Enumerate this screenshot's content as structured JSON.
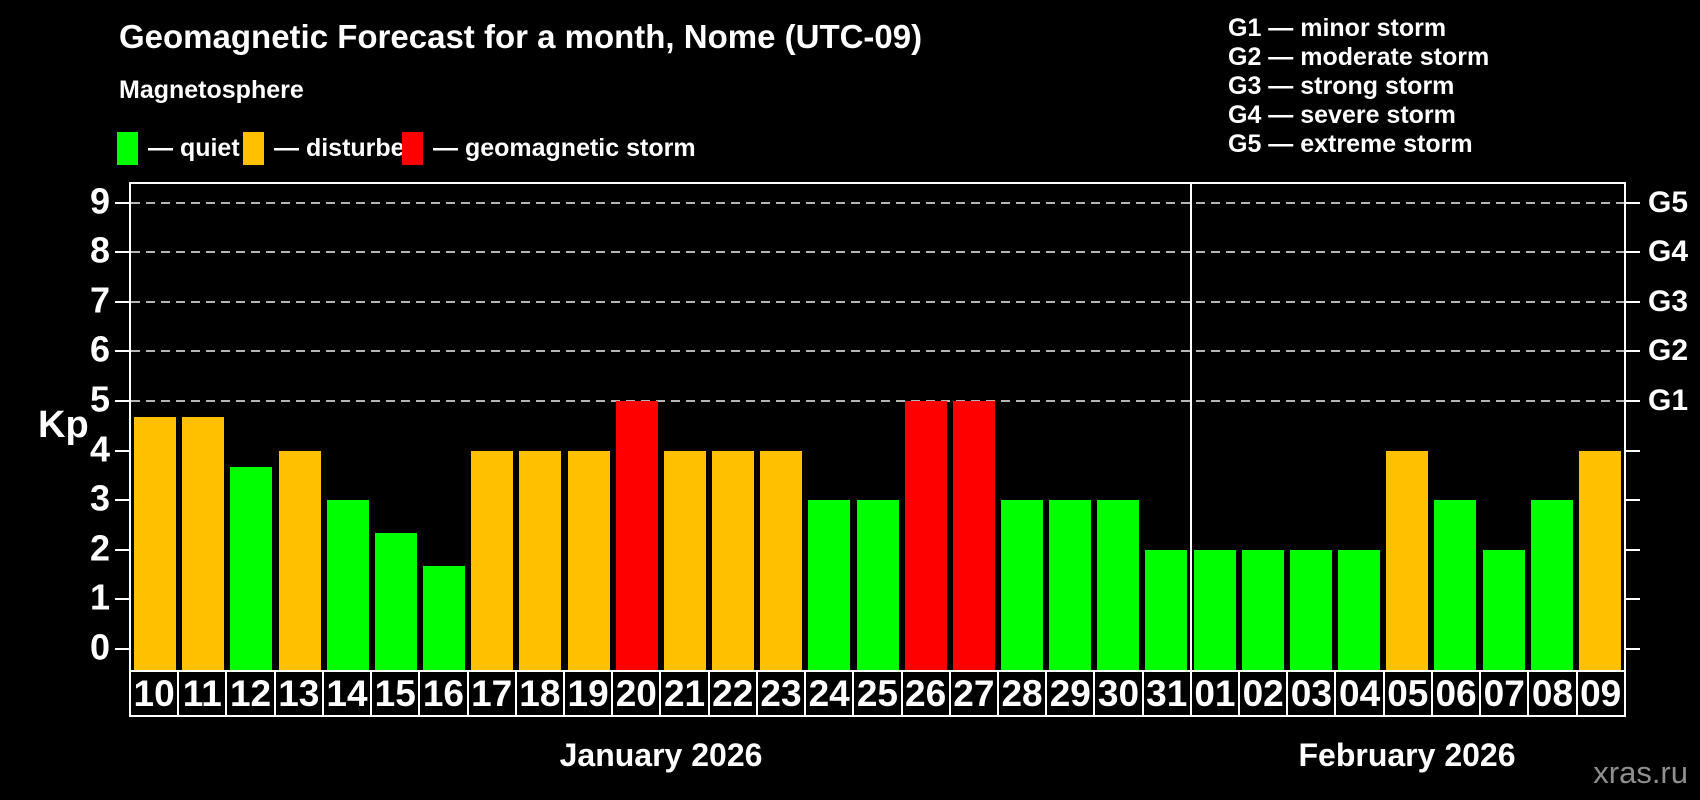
{
  "title": "Geomagnetic Forecast for a month, Nome (UTC-09)",
  "subtitle": "Magnetosphere",
  "status_legend": [
    {
      "key": "quiet",
      "label": "— quiet",
      "color": "#00ff00"
    },
    {
      "key": "disturbed",
      "label": "— disturbed",
      "color": "#ffc000"
    },
    {
      "key": "storm",
      "label": "— geomagnetic storm",
      "color": "#ff0000"
    }
  ],
  "g_scale_legend": [
    "G1 — minor storm",
    "G2 — moderate storm",
    "G3 — strong storm",
    "G4 — severe storm",
    "G5 — extreme storm"
  ],
  "watermark": "xras.ru",
  "chart_data": {
    "type": "bar",
    "title": "Geomagnetic Forecast for a month, Nome (UTC-09)",
    "ylabel": "Kp",
    "ylim": [
      0,
      9
    ],
    "yticks": [
      0,
      1,
      2,
      3,
      4,
      5,
      6,
      7,
      8,
      9
    ],
    "gridlines_at": [
      5,
      6,
      7,
      8,
      9
    ],
    "grid": "dashed horizontal lines at storm levels only",
    "legend_position": "top-left",
    "right_axis": [
      {
        "value": 5,
        "label": "G1"
      },
      {
        "value": 6,
        "label": "G2"
      },
      {
        "value": 7,
        "label": "G3"
      },
      {
        "value": 8,
        "label": "G4"
      },
      {
        "value": 9,
        "label": "G5"
      }
    ],
    "months": [
      {
        "label": "January 2026",
        "days_count": 22
      },
      {
        "label": "February 2026",
        "days_count": 9
      }
    ],
    "categories": [
      "10",
      "11",
      "12",
      "13",
      "14",
      "15",
      "16",
      "17",
      "18",
      "19",
      "20",
      "21",
      "22",
      "23",
      "24",
      "25",
      "26",
      "27",
      "28",
      "29",
      "30",
      "31",
      "01",
      "02",
      "03",
      "04",
      "05",
      "06",
      "07",
      "08",
      "09"
    ],
    "values": [
      4.67,
      4.67,
      3.67,
      4,
      3,
      2.33,
      1.67,
      4,
      4,
      4,
      5,
      4,
      4,
      4,
      3,
      3,
      5,
      5,
      3,
      3,
      3,
      2,
      2,
      2,
      2,
      2,
      4,
      3,
      2,
      3,
      4
    ],
    "statuses": [
      "disturbed",
      "disturbed",
      "quiet",
      "disturbed",
      "quiet",
      "quiet",
      "quiet",
      "disturbed",
      "disturbed",
      "disturbed",
      "storm",
      "disturbed",
      "disturbed",
      "disturbed",
      "quiet",
      "quiet",
      "storm",
      "storm",
      "quiet",
      "quiet",
      "quiet",
      "quiet",
      "quiet",
      "quiet",
      "quiet",
      "quiet",
      "disturbed",
      "quiet",
      "quiet",
      "quiet",
      "disturbed"
    ],
    "colors": {
      "quiet": "#00ff00",
      "disturbed": "#ffc000",
      "storm": "#ff0000"
    }
  }
}
